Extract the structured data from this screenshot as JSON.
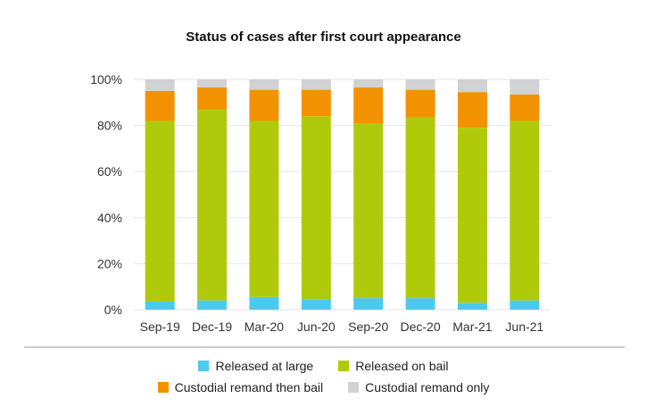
{
  "chart_data": {
    "type": "bar",
    "stacked": true,
    "title": "Status of cases after first court appearance",
    "xlabel": "",
    "ylabel": "",
    "ylim": [
      0,
      100
    ],
    "y_ticks": [
      "0%",
      "20%",
      "40%",
      "60%",
      "80%",
      "100%"
    ],
    "grid": true,
    "legend_position": "bottom",
    "categories": [
      "Sep-19",
      "Dec-19",
      "Mar-20",
      "Jun-20",
      "Sep-20",
      "Dec-20",
      "Mar-21",
      "Jun-21"
    ],
    "series": [
      {
        "name": "Released at large",
        "color": "#4dc9f0",
        "values": [
          3.5,
          4,
          5.5,
          4.5,
          5,
          5,
          3,
          4
        ]
      },
      {
        "name": "Released on bail",
        "color": "#afca0b",
        "values": [
          78.5,
          83,
          76.5,
          79.5,
          76,
          78.5,
          76,
          78
        ]
      },
      {
        "name": "Custodial remand then bail",
        "color": "#f39200",
        "values": [
          13,
          9.5,
          13.5,
          11.5,
          15.5,
          12,
          15.5,
          11.5
        ]
      },
      {
        "name": "Custodial remand only",
        "color": "#d0d2d3",
        "values": [
          5,
          3.5,
          4.5,
          4.5,
          3.5,
          4.5,
          5.5,
          6.5
        ]
      }
    ]
  }
}
